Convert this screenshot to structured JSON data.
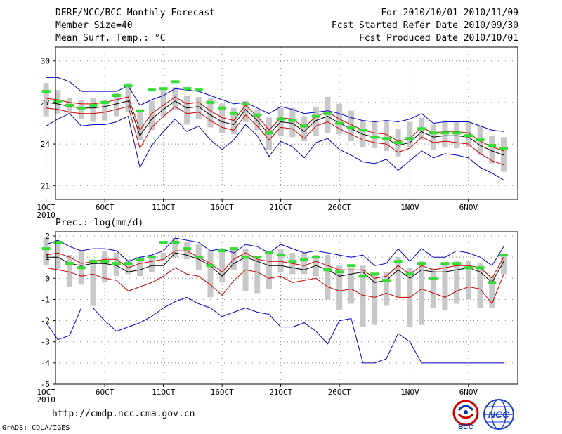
{
  "header": {
    "title": "DERF/NCC/BCC Monthly Forecast",
    "member_size": "Member Size=40",
    "variable_1": "Mean Surf. Temp.: °C",
    "period": "For 2010/10/01-2010/11/09",
    "start_date": "Fcst Started Refer Date 2010/09/30",
    "produced_date": "Fcst Produced Date 2010/10/01"
  },
  "panel2_label": "Prec.: log(mm/d)",
  "footer": {
    "url": "http://cmdp.ncc.cma.gov.cn",
    "credit": "GrADS: COLA/IGES"
  },
  "logos": {
    "bcc": "BCC",
    "ncc": "NCC"
  },
  "colors": {
    "mean": "#000000",
    "spread": "#cc0000",
    "extreme": "#0000cc",
    "box": "#c8c8c8",
    "obs": "#33dd33",
    "grid": "#888888"
  },
  "chart_data": [
    {
      "type": "line",
      "title": "Mean Surf. Temp.: °C",
      "x": [
        1,
        2,
        3,
        4,
        5,
        6,
        7,
        8,
        9,
        10,
        11,
        12,
        13,
        14,
        15,
        16,
        17,
        18,
        19,
        20,
        21,
        22,
        23,
        24,
        25,
        26,
        27,
        28,
        29,
        30,
        31,
        32,
        33,
        34,
        35,
        36,
        37,
        38,
        39,
        40
      ],
      "xticks": [
        {
          "day": 1,
          "label": "1OCT"
        },
        {
          "day": 6,
          "label": "6OCT"
        },
        {
          "day": 11,
          "label": "11OCT"
        },
        {
          "day": 16,
          "label": "16OCT"
        },
        {
          "day": 21,
          "label": "21OCT"
        },
        {
          "day": 26,
          "label": "26OCT"
        },
        {
          "day": 32,
          "label": "1NOV"
        },
        {
          "day": 37,
          "label": "6NOV"
        }
      ],
      "xyear": "2010",
      "ylim": [
        20,
        31
      ],
      "yticks": [
        21,
        24,
        27,
        30
      ],
      "series": [
        {
          "name": "ensemble max",
          "color": "#0000cc",
          "values": [
            28.8,
            28.8,
            28.5,
            27.8,
            27.8,
            27.8,
            27.8,
            28.2,
            26.8,
            27.2,
            27.5,
            28.0,
            27.9,
            27.8,
            27.5,
            27.2,
            26.9,
            27.0,
            26.6,
            26.2,
            26.7,
            26.5,
            26.2,
            26.3,
            26.4,
            26.2,
            25.9,
            25.7,
            25.6,
            25.7,
            25.6,
            25.8,
            26.2,
            25.5,
            25.6,
            25.6,
            25.6,
            25.3,
            25.0,
            24.9
          ]
        },
        {
          "name": "mean +1 sd",
          "color": "#cc0000",
          "values": [
            27.3,
            27.2,
            27.0,
            26.9,
            26.9,
            27.0,
            27.2,
            27.4,
            25.0,
            26.2,
            26.8,
            27.4,
            26.9,
            27.0,
            26.4,
            25.9,
            25.7,
            26.8,
            26.0,
            25.0,
            25.9,
            25.8,
            25.2,
            26.0,
            26.3,
            25.8,
            25.4,
            25.0,
            24.8,
            24.7,
            24.2,
            24.4,
            25.2,
            24.8,
            24.9,
            24.9,
            24.8,
            24.2,
            23.8,
            23.5
          ]
        },
        {
          "name": "ensemble mean",
          "color": "#000000",
          "values": [
            27.0,
            26.9,
            26.7,
            26.6,
            26.6,
            26.7,
            26.9,
            27.1,
            24.6,
            25.8,
            26.5,
            27.1,
            26.6,
            26.7,
            26.1,
            25.6,
            25.4,
            26.5,
            25.7,
            24.7,
            25.6,
            25.5,
            24.9,
            25.7,
            26.0,
            25.5,
            25.1,
            24.7,
            24.5,
            24.4,
            23.9,
            24.1,
            24.9,
            24.5,
            24.6,
            24.6,
            24.5,
            23.9,
            23.5,
            23.2
          ]
        },
        {
          "name": "mean -1 sd",
          "color": "#cc0000",
          "values": [
            26.6,
            26.5,
            26.3,
            26.2,
            26.2,
            26.3,
            26.5,
            26.7,
            23.7,
            25.2,
            26.0,
            26.7,
            26.2,
            26.3,
            25.7,
            25.2,
            25.0,
            26.1,
            25.3,
            24.3,
            25.2,
            25.1,
            24.4,
            25.3,
            25.6,
            25.1,
            24.7,
            24.3,
            24.1,
            24.0,
            23.4,
            23.7,
            24.5,
            24.1,
            24.2,
            24.1,
            24.0,
            23.3,
            22.8,
            22.5
          ]
        },
        {
          "name": "ensemble min",
          "color": "#0000cc",
          "values": [
            25.3,
            25.8,
            26.2,
            25.3,
            25.4,
            25.4,
            25.6,
            26.0,
            22.3,
            23.9,
            24.9,
            25.8,
            24.9,
            25.3,
            24.3,
            23.6,
            24.3,
            25.4,
            24.6,
            23.1,
            24.2,
            23.8,
            23.0,
            24.1,
            24.4,
            23.6,
            23.2,
            22.7,
            22.6,
            22.9,
            22.1,
            22.8,
            23.5,
            23.0,
            23.3,
            23.2,
            23.0,
            22.3,
            21.9,
            21.4
          ]
        }
      ],
      "boxes": {
        "lo": [
          26.0,
          26.2,
          26.2,
          25.8,
          25.6,
          25.7,
          26.0,
          26.3,
          24.3,
          25.0,
          26.0,
          26.5,
          25.4,
          25.8,
          25.2,
          24.8,
          24.7,
          25.6,
          25.0,
          23.6,
          24.6,
          24.5,
          24.2,
          24.6,
          24.8,
          24.7,
          24.2,
          23.8,
          23.7,
          23.5,
          23.1,
          23.8,
          24.3,
          23.6,
          23.8,
          23.7,
          23.8,
          23.2,
          22.6,
          22.0
        ],
        "hi": [
          28.4,
          27.9,
          27.3,
          27.2,
          27.3,
          27.2,
          27.7,
          28.4,
          26.4,
          27.1,
          27.9,
          28.1,
          27.5,
          27.4,
          27.3,
          26.9,
          26.6,
          27.1,
          26.5,
          25.9,
          26.6,
          26.6,
          26.0,
          26.7,
          27.4,
          26.9,
          26.4,
          25.7,
          25.6,
          25.7,
          25.1,
          25.6,
          25.9,
          25.4,
          25.7,
          25.6,
          25.6,
          25.3,
          24.6,
          24.5
        ]
      },
      "observed": [
        27.8,
        27.1,
        26.8,
        26.6,
        26.8,
        27.0,
        27.5,
        28.2,
        26.4,
        27.9,
        28.0,
        28.5,
        28.0,
        27.9,
        27.0,
        26.6,
        26.2,
        26.9,
        26.1,
        24.8,
        25.8,
        25.7,
        25.3,
        26.0,
        26.2,
        25.5,
        25.2,
        25.0,
        24.5,
        24.4,
        24.1,
        24.4,
        25.1,
        24.8,
        24.8,
        24.8,
        24.6,
        24.3,
        23.9,
        23.7
      ]
    },
    {
      "type": "line",
      "title": "Prec.: log(mm/d)",
      "x": [
        1,
        2,
        3,
        4,
        5,
        6,
        7,
        8,
        9,
        10,
        11,
        12,
        13,
        14,
        15,
        16,
        17,
        18,
        19,
        20,
        21,
        22,
        23,
        24,
        25,
        26,
        27,
        28,
        29,
        30,
        31,
        32,
        33,
        34,
        35,
        36,
        37,
        38,
        39,
        40
      ],
      "xticks": [
        {
          "day": 1,
          "label": "1OCT"
        },
        {
          "day": 6,
          "label": "6OCT"
        },
        {
          "day": 11,
          "label": "11OCT"
        },
        {
          "day": 16,
          "label": "16OCT"
        },
        {
          "day": 21,
          "label": "21OCT"
        },
        {
          "day": 26,
          "label": "26OCT"
        },
        {
          "day": 32,
          "label": "1NOV"
        },
        {
          "day": 37,
          "label": "6NOV"
        }
      ],
      "xyear": "2010",
      "ylim": [
        -5,
        2.2
      ],
      "yticks": [
        -5,
        -4,
        -3,
        -2,
        -1,
        0,
        1,
        2
      ],
      "series": [
        {
          "name": "ensemble max",
          "color": "#0000cc",
          "values": [
            1.6,
            1.8,
            1.5,
            1.3,
            1.4,
            1.4,
            1.3,
            0.8,
            1.0,
            1.1,
            1.3,
            1.9,
            1.8,
            1.7,
            1.3,
            1.4,
            1.2,
            1.6,
            1.5,
            1.2,
            1.6,
            1.4,
            1.2,
            1.3,
            1.2,
            1.1,
            1.0,
            1.1,
            0.6,
            0.7,
            1.4,
            0.8,
            1.4,
            1.0,
            1.0,
            1.3,
            1.2,
            1.0,
            0.6,
            1.5
          ]
        },
        {
          "name": "mean +1 sd",
          "color": "#cc0000",
          "values": [
            1.1,
            1.2,
            1.0,
            0.7,
            0.8,
            0.9,
            0.9,
            0.5,
            0.7,
            0.8,
            0.9,
            1.3,
            1.3,
            1.0,
            0.7,
            0.3,
            0.9,
            1.2,
            0.9,
            0.8,
            0.8,
            0.7,
            0.6,
            0.8,
            0.6,
            0.4,
            0.4,
            0.4,
            0.0,
            0.1,
            0.6,
            0.2,
            0.6,
            0.4,
            0.5,
            0.6,
            0.6,
            0.5,
            0.0,
            1.0
          ]
        },
        {
          "name": "ensemble mean",
          "color": "#000000",
          "values": [
            1.0,
            1.0,
            0.7,
            0.6,
            0.7,
            0.7,
            0.6,
            0.3,
            0.4,
            0.6,
            0.6,
            1.2,
            1.1,
            0.9,
            0.6,
            0.1,
            0.7,
            1.0,
            0.8,
            0.6,
            0.6,
            0.5,
            0.4,
            0.6,
            0.4,
            0.1,
            0.2,
            0.3,
            -0.2,
            -0.1,
            0.4,
            0.0,
            0.4,
            0.3,
            0.3,
            0.4,
            0.5,
            0.3,
            -0.2,
            0.8
          ]
        },
        {
          "name": "mean -1 sd",
          "color": "#cc0000",
          "values": [
            0.5,
            0.4,
            0.3,
            0.1,
            0.2,
            0.0,
            -0.1,
            -0.6,
            -0.4,
            -0.2,
            0.1,
            0.5,
            0.2,
            0.1,
            -0.3,
            -0.8,
            -0.1,
            0.4,
            0.3,
            0.0,
            0.1,
            -0.2,
            -0.1,
            0.0,
            -0.4,
            -0.6,
            -0.5,
            -0.8,
            -0.9,
            -0.7,
            -0.9,
            -0.9,
            -0.5,
            -0.7,
            -0.9,
            -0.6,
            -0.4,
            -0.5,
            -1.2,
            0.2
          ]
        },
        {
          "name": "ensemble min",
          "color": "#0000cc",
          "values": [
            -2.1,
            -2.9,
            -2.7,
            -1.4,
            -1.4,
            -2.0,
            -2.5,
            -2.3,
            -2.1,
            -1.8,
            -1.4,
            -1.1,
            -0.9,
            -1.2,
            -1.4,
            -1.8,
            -1.6,
            -1.4,
            -1.6,
            -1.7,
            -2.3,
            -2.3,
            -2.1,
            -2.5,
            -3.1,
            -2.0,
            -1.9,
            -4.0,
            -4.0,
            -3.8,
            -2.6,
            -3.0,
            -4.0,
            -4.0,
            -4.0,
            -4.0,
            -4.0,
            -4.0,
            -4.0,
            -4.0
          ]
        }
      ],
      "boxes": {
        "lo": [
          0.6,
          0.4,
          -0.4,
          -0.3,
          -1.3,
          -0.2,
          0.1,
          0.2,
          0.1,
          0.3,
          0.8,
          1.0,
          0.9,
          0.4,
          -0.9,
          -0.2,
          0.4,
          -0.6,
          -0.7,
          -0.5,
          0.3,
          0.2,
          0.2,
          0.1,
          -1.0,
          -1.5,
          -1.2,
          -2.3,
          -2.2,
          -1.3,
          -0.9,
          -2.3,
          -2.2,
          -1.4,
          -1.5,
          -1.2,
          -1.0,
          -1.4,
          -1.4,
          0.2
        ],
        "hi": [
          1.9,
          1.7,
          1.1,
          1.3,
          0.9,
          1.3,
          1.2,
          0.9,
          1.0,
          1.1,
          1.2,
          1.9,
          1.7,
          1.6,
          1.3,
          1.3,
          1.4,
          1.4,
          1.0,
          1.3,
          1.4,
          1.2,
          1.2,
          1.1,
          1.1,
          0.6,
          0.5,
          0.6,
          0.2,
          0.3,
          1.0,
          0.5,
          0.8,
          0.5,
          0.7,
          0.8,
          0.8,
          0.7,
          0.1,
          1.1
        ]
      },
      "observed": [
        1.4,
        1.7,
        0.7,
        0.5,
        0.8,
        0.8,
        0.7,
        0.7,
        0.9,
        1.0,
        1.7,
        1.7,
        1.4,
        1.0,
        0.6,
        1.3,
        1.4,
        1.0,
        1.0,
        1.2,
        1.1,
        0.8,
        0.9,
        1.0,
        0.4,
        0.3,
        0.6,
        0.1,
        0.2,
        -0.1,
        0.8,
        0.2,
        0.7,
        0.0,
        0.7,
        0.7,
        0.5,
        0.5,
        -0.2,
        1.1
      ]
    }
  ]
}
